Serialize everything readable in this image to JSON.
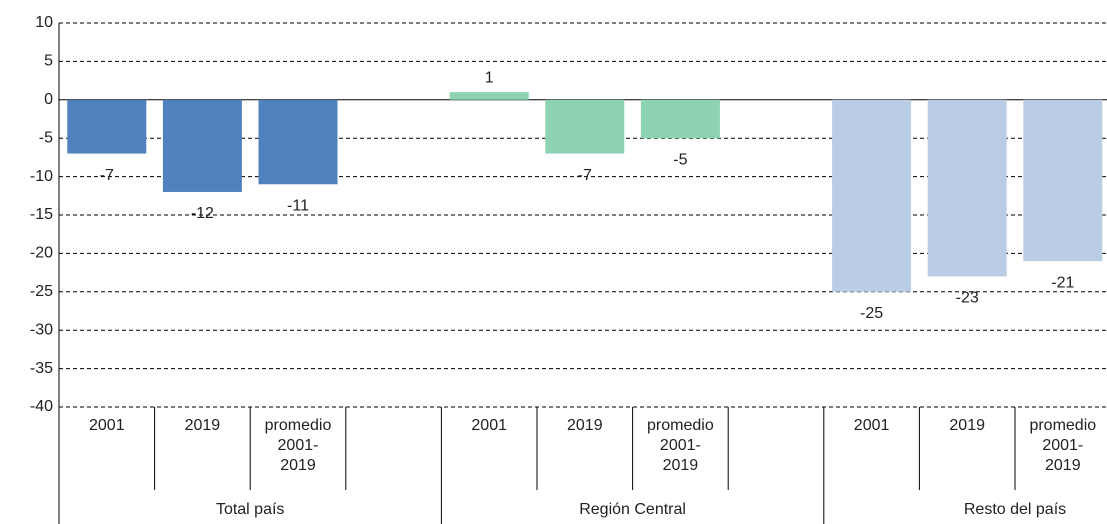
{
  "chart_data": {
    "type": "bar",
    "groups": [
      {
        "name": "Total país",
        "color": "#4f81bd",
        "categories": [
          "2001",
          "2019",
          "promedio 2001-2019"
        ],
        "values": [
          -7,
          -12,
          -11
        ]
      },
      {
        "name": "Región Central",
        "color": "#8dd3b3",
        "categories": [
          "2001",
          "2019",
          "promedio 2001-2019"
        ],
        "values": [
          1,
          -7,
          -5
        ]
      },
      {
        "name": "Resto del país",
        "color": "#b9cde5",
        "categories": [
          "2001",
          "2019",
          "promedio 2001-2019"
        ],
        "values": [
          -25,
          -23,
          -21
        ]
      }
    ],
    "ylim": [
      -40,
      10
    ],
    "yticks": [
      10,
      5,
      0,
      -5,
      -10,
      -15,
      -20,
      -25,
      -30,
      -35,
      -40
    ],
    "grid": true
  }
}
